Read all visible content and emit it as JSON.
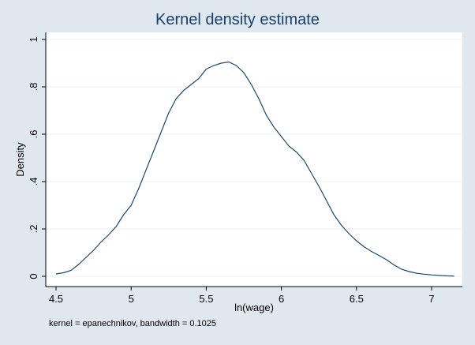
{
  "chart_data": {
    "type": "line",
    "title": "Kernel density estimate",
    "xlabel": "ln(wage)",
    "ylabel": "Density",
    "note": "kernel = epanechnikov, bandwidth = 0.1025",
    "xlim": [
      4.45,
      7.2
    ],
    "ylim": [
      0,
      1.02
    ],
    "xticks": [
      "4.5",
      "5",
      "5.5",
      "6",
      "6.5",
      "7"
    ],
    "yticks": [
      "0",
      ".2",
      ".4",
      ".6",
      ".8",
      "1"
    ],
    "grid": true,
    "series": [
      {
        "color": "#1a476f",
        "x": [
          4.5,
          4.55,
          4.6,
          4.65,
          4.7,
          4.75,
          4.8,
          4.85,
          4.9,
          4.95,
          5.0,
          5.05,
          5.1,
          5.15,
          5.2,
          5.25,
          5.3,
          5.35,
          5.4,
          5.45,
          5.5,
          5.55,
          5.6,
          5.65,
          5.7,
          5.75,
          5.8,
          5.85,
          5.9,
          5.95,
          6.0,
          6.05,
          6.1,
          6.15,
          6.2,
          6.25,
          6.3,
          6.35,
          6.4,
          6.45,
          6.5,
          6.55,
          6.6,
          6.65,
          6.7,
          6.75,
          6.8,
          6.85,
          6.9,
          6.95,
          7.0,
          7.05,
          7.1,
          7.15
        ],
        "y": [
          0.01,
          0.015,
          0.025,
          0.05,
          0.08,
          0.11,
          0.145,
          0.175,
          0.21,
          0.26,
          0.3,
          0.37,
          0.45,
          0.53,
          0.61,
          0.69,
          0.75,
          0.785,
          0.81,
          0.835,
          0.875,
          0.89,
          0.9,
          0.905,
          0.89,
          0.86,
          0.81,
          0.75,
          0.68,
          0.63,
          0.59,
          0.55,
          0.525,
          0.49,
          0.435,
          0.38,
          0.32,
          0.26,
          0.215,
          0.18,
          0.15,
          0.125,
          0.105,
          0.088,
          0.07,
          0.048,
          0.03,
          0.02,
          0.013,
          0.009,
          0.006,
          0.004,
          0.002,
          0.001
        ]
      }
    ]
  }
}
